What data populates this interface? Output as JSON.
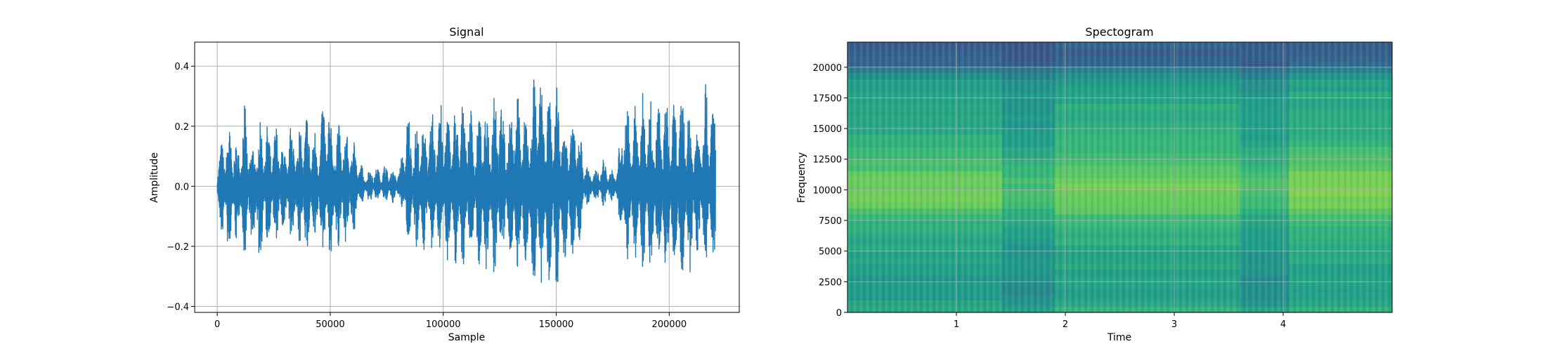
{
  "chart_data": [
    {
      "type": "line",
      "title": "Signal",
      "xlabel": "Sample",
      "ylabel": "Amplitude",
      "xlim": [
        -10000,
        231000
      ],
      "ylim": [
        -0.42,
        0.48
      ],
      "x_ticks": [
        0,
        50000,
        100000,
        150000,
        200000
      ],
      "y_ticks": [
        0.4,
        0.2,
        0.0,
        -0.2,
        -0.4
      ],
      "x_tick_labels": [
        "0",
        "50000",
        "100000",
        "150000",
        "200000"
      ],
      "y_tick_labels": [
        "0.4",
        "0.2",
        "0.0",
        "−0.2",
        "−0.4"
      ],
      "grid": true,
      "series": [
        {
          "color": "#1f77b4",
          "x": [
            0,
            3000,
            6000,
            9000,
            12000,
            15000,
            18000,
            21000,
            24000,
            27000,
            30000,
            33000,
            36000,
            39000,
            42000,
            45000,
            48000,
            51000,
            54000,
            57000,
            60000,
            63000,
            66000,
            69000,
            72000,
            75000,
            78000,
            81000,
            84000,
            87000,
            90000,
            93000,
            96000,
            99000,
            102000,
            105000,
            108000,
            111000,
            114000,
            117000,
            120000,
            123000,
            126000,
            129000,
            132000,
            135000,
            138000,
            141000,
            144000,
            147000,
            150000,
            153000,
            156000,
            159000,
            162000,
            165000,
            168000,
            171000,
            174000,
            177000,
            180000,
            183000,
            186000,
            189000,
            192000,
            195000,
            198000,
            201000,
            204000,
            207000,
            210000,
            213000,
            216000,
            219000,
            220500
          ],
          "upper": [
            0.09,
            0.18,
            0.2,
            0.13,
            0.29,
            0.12,
            0.2,
            0.24,
            0.18,
            0.22,
            0.12,
            0.24,
            0.19,
            0.26,
            0.2,
            0.18,
            0.35,
            0.2,
            0.22,
            0.18,
            0.2,
            0.08,
            0.05,
            0.07,
            0.06,
            0.08,
            0.05,
            0.07,
            0.27,
            0.18,
            0.25,
            0.22,
            0.26,
            0.32,
            0.24,
            0.27,
            0.3,
            0.31,
            0.2,
            0.28,
            0.26,
            0.38,
            0.3,
            0.2,
            0.36,
            0.28,
            0.25,
            0.44,
            0.33,
            0.3,
            0.36,
            0.27,
            0.2,
            0.27,
            0.12,
            0.05,
            0.06,
            0.1,
            0.05,
            0.07,
            0.32,
            0.25,
            0.3,
            0.32,
            0.28,
            0.28,
            0.3,
            0.27,
            0.28,
            0.36,
            0.2,
            0.25,
            0.37,
            0.28,
            0.31
          ],
          "lower": [
            -0.08,
            -0.22,
            -0.26,
            -0.17,
            -0.24,
            -0.19,
            -0.28,
            -0.22,
            -0.18,
            -0.21,
            -0.15,
            -0.21,
            -0.2,
            -0.24,
            -0.2,
            -0.2,
            -0.23,
            -0.26,
            -0.22,
            -0.19,
            -0.2,
            -0.06,
            -0.05,
            -0.06,
            -0.04,
            -0.06,
            -0.06,
            -0.05,
            -0.2,
            -0.18,
            -0.24,
            -0.2,
            -0.24,
            -0.21,
            -0.25,
            -0.26,
            -0.29,
            -0.24,
            -0.22,
            -0.3,
            -0.28,
            -0.32,
            -0.24,
            -0.22,
            -0.33,
            -0.25,
            -0.3,
            -0.38,
            -0.34,
            -0.33,
            -0.37,
            -0.3,
            -0.24,
            -0.28,
            -0.1,
            -0.05,
            -0.06,
            -0.07,
            -0.05,
            -0.06,
            -0.26,
            -0.26,
            -0.27,
            -0.28,
            -0.3,
            -0.25,
            -0.3,
            -0.28,
            -0.3,
            -0.33,
            -0.3,
            -0.2,
            -0.29,
            -0.24,
            -0.35
          ]
        }
      ]
    },
    {
      "type": "heatmap",
      "title": "Spectogram",
      "xlabel": "Time",
      "ylabel": "Frequency",
      "xlim": [
        0.0,
        5.0
      ],
      "ylim": [
        0,
        22050
      ],
      "x_ticks": [
        1,
        2,
        3,
        4
      ],
      "y_ticks": [
        0,
        2500,
        5000,
        7500,
        10000,
        12500,
        15000,
        17500,
        20000
      ],
      "x_tick_labels": [
        "1",
        "2",
        "3",
        "4"
      ],
      "y_tick_labels": [
        "0",
        "2500",
        "5000",
        "7500",
        "10000",
        "12500",
        "15000",
        "17500",
        "20000"
      ],
      "grid": true,
      "colormap": "viridis",
      "time_segments": [
        {
          "t": [
            0.0,
            1.42
          ],
          "level": 0.62
        },
        {
          "t": [
            1.42,
            1.9
          ],
          "level": 0.48
        },
        {
          "t": [
            1.9,
            3.6
          ],
          "level": 0.66
        },
        {
          "t": [
            3.6,
            4.05
          ],
          "level": 0.5
        },
        {
          "t": [
            4.05,
            5.0
          ],
          "level": 0.67
        }
      ],
      "frequency_profile": {
        "freq": [
          0,
          1000,
          2500,
          5000,
          7500,
          9000,
          10500,
          12500,
          15000,
          17500,
          19000,
          19800,
          20200,
          22050
        ],
        "level": [
          0.68,
          0.55,
          0.56,
          0.6,
          0.66,
          0.78,
          0.8,
          0.7,
          0.62,
          0.6,
          0.55,
          0.45,
          0.32,
          0.3
        ]
      }
    }
  ]
}
